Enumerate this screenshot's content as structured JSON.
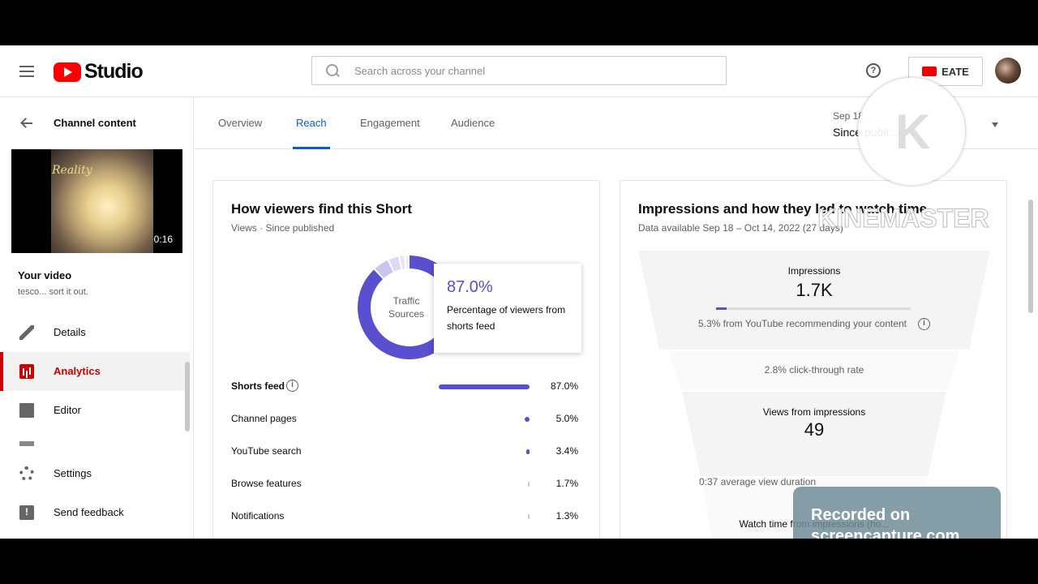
{
  "header": {
    "logo_text": "Studio",
    "search_placeholder": "Search across your channel",
    "create_label": "EATE"
  },
  "sidebar": {
    "back_label": "Channel content",
    "thumbnail": {
      "caption": "Reality",
      "duration": "0:16"
    },
    "your_video_label": "Your video",
    "video_title": "tesco... sort it out.",
    "items": [
      {
        "label": "Details",
        "icon": "pencil-icon"
      },
      {
        "label": "Analytics",
        "icon": "analytics-icon",
        "active": true
      },
      {
        "label": "Editor",
        "icon": "editor-icon"
      },
      {
        "label": "Settings",
        "icon": "gear-icon"
      },
      {
        "label": "Send feedback",
        "icon": "feedback-icon"
      }
    ]
  },
  "tabs": {
    "items": [
      {
        "label": "Overview"
      },
      {
        "label": "Reach",
        "active": true
      },
      {
        "label": "Engagement"
      },
      {
        "label": "Audience"
      }
    ],
    "date_small": "Sep 18, ...",
    "date_range": "Since publi..."
  },
  "traffic_card": {
    "title": "How viewers find this Short",
    "subtitle": "Views · Since published",
    "donut_label_line1": "Traffic",
    "donut_label_line2": "Sources",
    "tooltip_value": "87.0%",
    "tooltip_text": "Percentage of viewers from shorts feed",
    "accent": "#5a4fcf",
    "sources": [
      {
        "label": "Shorts feed",
        "value": 87.0,
        "pct": "87.0%"
      },
      {
        "label": "Channel pages",
        "value": 5.0,
        "pct": "5.0%"
      },
      {
        "label": "YouTube search",
        "value": 3.4,
        "pct": "3.4%"
      },
      {
        "label": "Browse features",
        "value": 1.7,
        "pct": "1.7%"
      },
      {
        "label": "Notifications",
        "value": 1.3,
        "pct": "1.3%"
      }
    ]
  },
  "impressions_card": {
    "title": "Impressions and how they led to watch time",
    "subtitle": "Data available Sep 18 – Oct 14, 2022 (27 days)",
    "impressions_label": "Impressions",
    "impressions_value": "1.7K",
    "recommend_fraction": 0.053,
    "recommend_text": "5.3% from YouTube recommending your content",
    "ctr_text": "2.8% click-through rate",
    "views_label": "Views from impressions",
    "views_value": "49",
    "avd_text": "0:37 average view duration",
    "watch_time_text": "Watch time from impressions (ho..."
  },
  "overlays": {
    "watermark": "KINEMASTER",
    "recorded_line1": "Recorded on",
    "recorded_line2": "screencapture.com"
  }
}
